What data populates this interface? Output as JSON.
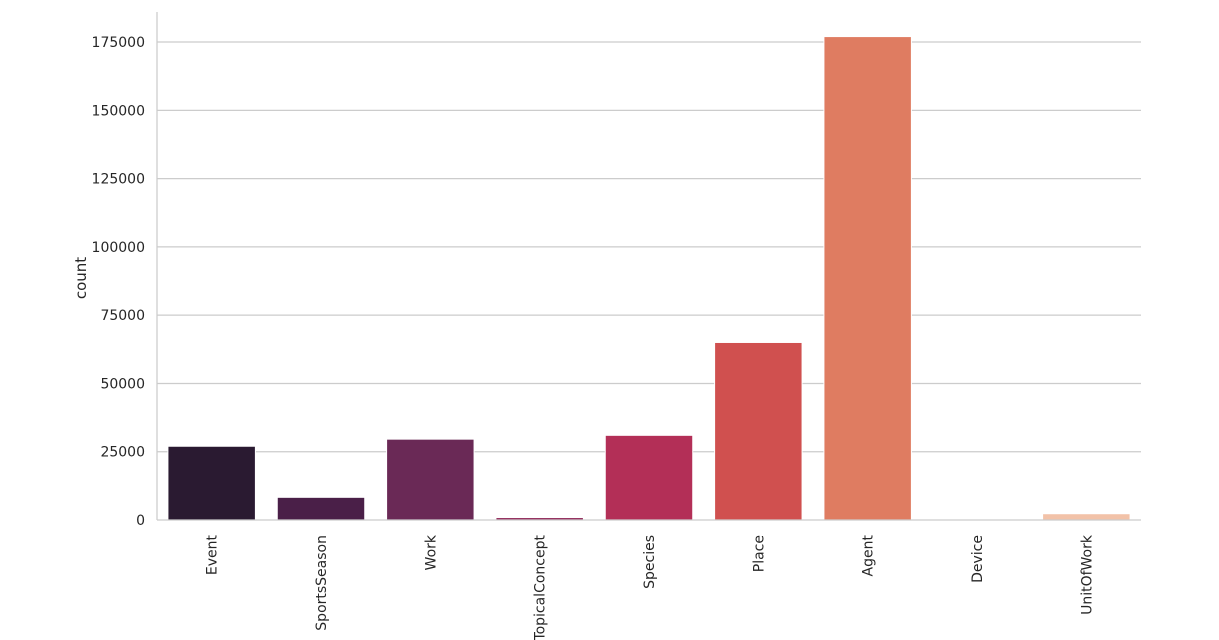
{
  "chart_data": {
    "type": "bar",
    "title": "",
    "xlabel": "",
    "ylabel": "count",
    "categories": [
      "Event",
      "SportsSeason",
      "Work",
      "TopicalConcept",
      "Species",
      "Place",
      "Agent",
      "Device",
      "UnitOfWork"
    ],
    "values": [
      27000,
      8300,
      29600,
      900,
      31000,
      65000,
      177000,
      300,
      2300
    ],
    "colors": [
      "#2a1a31",
      "#4a1f48",
      "#6a2956",
      "#922b5c",
      "#b32f57",
      "#d0504f",
      "#df7c61",
      "#edaa87",
      "#f2c2a8"
    ],
    "ylim": [
      0,
      186000
    ],
    "yticks": [
      0,
      25000,
      50000,
      75000,
      100000,
      125000,
      150000,
      175000
    ],
    "grid": "horizontal",
    "legend": "none"
  }
}
